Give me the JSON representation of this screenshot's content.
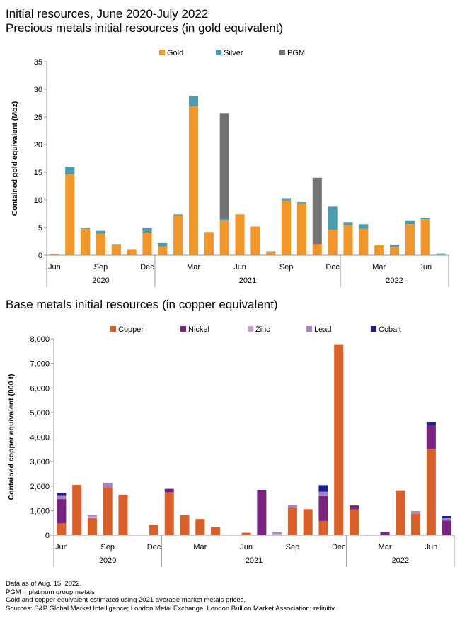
{
  "header": {
    "title": "Initial resources, June 2020-July 2022",
    "subtitle": "Precious metals initial resources (in gold equivalent)",
    "base_title": "Base metals initial resources (in copper equivalent)"
  },
  "notes": [
    "Data as of Aug. 15, 2022.",
    "PGM = platinum group metals",
    "Gold and copper equivalent estimated using 2021 average market metals prices.",
    "Sources: S&P Global Market Intelligence; London Metal Exchange; London Bullion Market Association; refinitiv"
  ],
  "colors": {
    "gold": "#f0962a",
    "silver": "#4a9bb0",
    "pgm": "#727272",
    "copper": "#d8612b",
    "nickel": "#7b2380",
    "zinc": "#c9a3d1",
    "lead": "#a883c5",
    "cobalt": "#1b1f8c"
  },
  "chart_data": [
    {
      "type": "bar",
      "stacked": true,
      "title": "Precious metals initial resources (in gold equivalent)",
      "ylabel": "Contained gold equivalent (Moz)",
      "ylim": [
        0,
        35
      ],
      "yticks": [
        0,
        5,
        10,
        15,
        20,
        25,
        30,
        35
      ],
      "months": [
        "2020-06",
        "2020-07",
        "2020-08",
        "2020-09",
        "2020-10",
        "2020-11",
        "2020-12",
        "2021-01",
        "2021-02",
        "2021-03",
        "2021-04",
        "2021-05",
        "2021-06",
        "2021-07",
        "2021-08",
        "2021-09",
        "2021-10",
        "2021-11",
        "2021-12",
        "2022-01",
        "2022-02",
        "2022-03",
        "2022-04",
        "2022-05",
        "2022-06",
        "2022-07"
      ],
      "month_labels": [
        {
          "index": 0,
          "label": "Jun"
        },
        {
          "index": 3,
          "label": "Sep"
        },
        {
          "index": 6,
          "label": "Dec"
        },
        {
          "index": 9,
          "label": "Mar"
        },
        {
          "index": 12,
          "label": "Jun"
        },
        {
          "index": 15,
          "label": "Sep"
        },
        {
          "index": 18,
          "label": "Dec"
        },
        {
          "index": 21,
          "label": "Mar"
        },
        {
          "index": 24,
          "label": "Jun"
        }
      ],
      "years": [
        {
          "label": "2020",
          "start": 0,
          "end": 6
        },
        {
          "label": "2021",
          "start": 7,
          "end": 18
        },
        {
          "label": "2022",
          "start": 19,
          "end": 25
        }
      ],
      "series": [
        {
          "name": "Gold",
          "color_key": "gold",
          "values": [
            0.2,
            14.6,
            4.8,
            3.9,
            1.9,
            1.1,
            4.1,
            1.6,
            7.2,
            26.9,
            4.2,
            6.3,
            7.4,
            5.2,
            0.5,
            9.9,
            9.3,
            2.0,
            4.6,
            5.4,
            4.8,
            1.8,
            1.5,
            5.6,
            6.5,
            0.1
          ]
        },
        {
          "name": "Silver",
          "color_key": "silver",
          "values": [
            0.0,
            1.4,
            0.2,
            0.5,
            0.1,
            0.0,
            0.9,
            0.6,
            0.2,
            1.9,
            0.0,
            0.3,
            0.0,
            0.0,
            0.2,
            0.3,
            0.3,
            0.0,
            4.2,
            0.6,
            0.8,
            0.0,
            0.4,
            0.6,
            0.3,
            0.2
          ]
        },
        {
          "name": "PGM",
          "color_key": "pgm",
          "values": [
            0,
            0,
            0,
            0,
            0,
            0,
            0,
            0,
            0,
            0,
            0,
            19.0,
            0,
            0,
            0,
            0,
            0,
            12.0,
            0,
            0,
            0,
            0,
            0,
            0,
            0,
            0
          ]
        }
      ]
    },
    {
      "type": "bar",
      "stacked": true,
      "title": "Base metals initial resources (in copper equivalent)",
      "ylabel": "Contained copper equivalent (000 t)",
      "ylim": [
        0,
        8000
      ],
      "yticks": [
        0,
        1000,
        2000,
        3000,
        4000,
        5000,
        6000,
        7000,
        8000
      ],
      "ytick_labels": [
        "0",
        "1,000",
        "2,000",
        "3,000",
        "4,000",
        "5,000",
        "6,000",
        "7,000",
        "8,000"
      ],
      "months": [
        "2020-06",
        "2020-07",
        "2020-08",
        "2020-09",
        "2020-10",
        "2020-11",
        "2020-12",
        "2021-01",
        "2021-02",
        "2021-03",
        "2021-04",
        "2021-05",
        "2021-06",
        "2021-07",
        "2021-08",
        "2021-09",
        "2021-10",
        "2021-11",
        "2021-12",
        "2022-01",
        "2022-02",
        "2022-03",
        "2022-04",
        "2022-05",
        "2022-06",
        "2022-07"
      ],
      "month_labels": [
        {
          "index": 0,
          "label": "Jun"
        },
        {
          "index": 3,
          "label": "Sep"
        },
        {
          "index": 6,
          "label": "Dec"
        },
        {
          "index": 9,
          "label": "Mar"
        },
        {
          "index": 12,
          "label": "Jun"
        },
        {
          "index": 15,
          "label": "Sep"
        },
        {
          "index": 18,
          "label": "Dec"
        },
        {
          "index": 21,
          "label": "Mar"
        },
        {
          "index": 24,
          "label": "Jun"
        }
      ],
      "years": [
        {
          "label": "2020",
          "start": 0,
          "end": 6
        },
        {
          "label": "2021",
          "start": 7,
          "end": 18
        },
        {
          "label": "2022",
          "start": 19,
          "end": 25
        }
      ],
      "series": [
        {
          "name": "Copper",
          "color_key": "copper",
          "values": [
            480,
            2050,
            700,
            1950,
            1650,
            0,
            420,
            1750,
            820,
            660,
            320,
            0,
            100,
            0,
            0,
            1120,
            1060,
            580,
            7780,
            1050,
            0,
            0,
            1830,
            880,
            3520,
            0
          ]
        },
        {
          "name": "Nickel",
          "color_key": "nickel",
          "values": [
            990,
            0,
            0,
            0,
            0,
            0,
            0,
            140,
            0,
            0,
            0,
            0,
            0,
            1850,
            0,
            0,
            0,
            1020,
            0,
            160,
            0,
            130,
            0,
            0,
            940,
            600
          ]
        },
        {
          "name": "Zinc",
          "color_key": "zinc",
          "values": [
            0,
            0,
            60,
            0,
            0,
            0,
            0,
            0,
            0,
            0,
            0,
            0,
            0,
            0,
            60,
            0,
            0,
            0,
            0,
            0,
            25,
            0,
            0,
            40,
            0,
            0
          ]
        },
        {
          "name": "Lead",
          "color_key": "lead",
          "values": [
            160,
            0,
            60,
            190,
            0,
            0,
            0,
            0,
            0,
            0,
            0,
            0,
            0,
            0,
            60,
            110,
            0,
            170,
            0,
            0,
            0,
            0,
            0,
            60,
            0,
            90
          ]
        },
        {
          "name": "Cobalt",
          "color_key": "cobalt",
          "values": [
            80,
            0,
            0,
            0,
            0,
            0,
            0,
            0,
            0,
            0,
            0,
            0,
            0,
            0,
            0,
            0,
            0,
            270,
            0,
            0,
            0,
            0,
            0,
            0,
            160,
            90
          ]
        }
      ]
    }
  ]
}
